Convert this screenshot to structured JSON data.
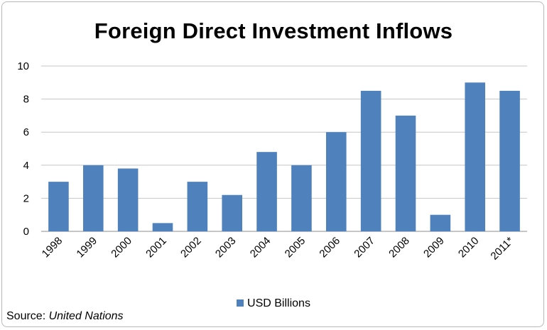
{
  "chart_data": {
    "type": "bar",
    "title": "Foreign Direct Investment Inflows",
    "categories": [
      "1998",
      "1999",
      "2000",
      "2001",
      "2002",
      "2003",
      "2004",
      "2005",
      "2006",
      "2007",
      "2008",
      "2009",
      "2010",
      "2011*"
    ],
    "series": [
      {
        "name": "USD Billions",
        "values": [
          3,
          4,
          3.8,
          0.5,
          3,
          2.2,
          4.8,
          4,
          6,
          8.5,
          7,
          1,
          9,
          8.5
        ],
        "color": "#4f81bd"
      }
    ],
    "ylim": [
      0,
      10
    ],
    "yticks": [
      0,
      2,
      4,
      6,
      8,
      10
    ],
    "grid": true,
    "legend": "bottom"
  },
  "source": {
    "label": "Source: ",
    "name": "United Nations"
  }
}
